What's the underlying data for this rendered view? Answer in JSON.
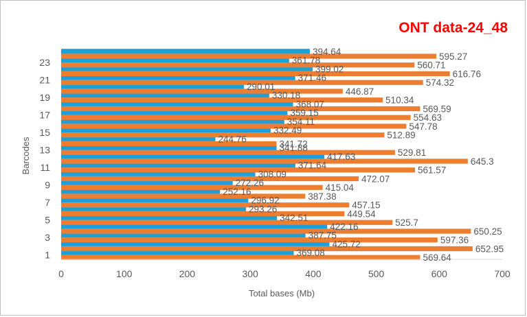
{
  "chart_data": {
    "type": "bar",
    "orientation": "horizontal",
    "title": "ONT data-24_48",
    "xlabel": "Total bases (Mb)",
    "ylabel": "Barcodes",
    "xlim": [
      0,
      700
    ],
    "xticks": [
      "0",
      "100",
      "200",
      "300",
      "400",
      "500",
      "600",
      "700"
    ],
    "categories": [
      "1",
      "2",
      "3",
      "4",
      "5",
      "6",
      "7",
      "8",
      "9",
      "10",
      "11",
      "12",
      "13",
      "14",
      "15",
      "16",
      "17",
      "18",
      "19",
      "20",
      "21",
      "22",
      "23",
      "24"
    ],
    "category_tick_labels": [
      "1",
      "3",
      "5",
      "7",
      "9",
      "11",
      "13",
      "15",
      "17",
      "19",
      "21",
      "23"
    ],
    "grid": false,
    "legend": "none",
    "series": [
      {
        "color": "#ed7d31",
        "values": [
          569.64,
          652.95,
          597.36,
          650.25,
          525.7,
          449.54,
          457.15,
          387.38,
          415.04,
          472.07,
          561.57,
          645.3,
          529.81,
          341.72,
          512.89,
          547.78,
          554.63,
          569.59,
          510.34,
          446.87,
          574.32,
          616.76,
          560.71,
          595.27
        ],
        "labels": [
          "569.64",
          "652.95",
          "597.36",
          "650.25",
          "525.7",
          "449.54",
          "457.15",
          "387.38",
          "415.04",
          "472.07",
          "561.57",
          "645.3",
          "529.81",
          "341.72",
          "512.89",
          "547.78",
          "554.63",
          "569.59",
          "510.34",
          "446.87",
          "574.32",
          "616.76",
          "560.71",
          "595.27"
        ]
      },
      {
        "color": "#1e9fd8",
        "values": [
          369.08,
          425.72,
          387.75,
          422.16,
          342.51,
          293.26,
          296.92,
          252.16,
          272.26,
          308.09,
          371.64,
          417.63,
          341.88,
          244.76,
          332.49,
          354.11,
          359.15,
          368.07,
          330.18,
          290.01,
          371.46,
          399.02,
          361.78,
          394.64
        ],
        "labels": [
          "369.08",
          "425.72",
          "387.75",
          "422.16",
          "342.51",
          "293.26",
          "296.92",
          "252.16",
          "272.26",
          "308.09",
          "371.64",
          "417.63",
          "341.88",
          "244.76",
          "332.49",
          "354.11",
          "359.15",
          "368.07",
          "330.18",
          "290.01",
          "371.46",
          "399.02",
          "361.78",
          "394.64"
        ]
      }
    ]
  }
}
